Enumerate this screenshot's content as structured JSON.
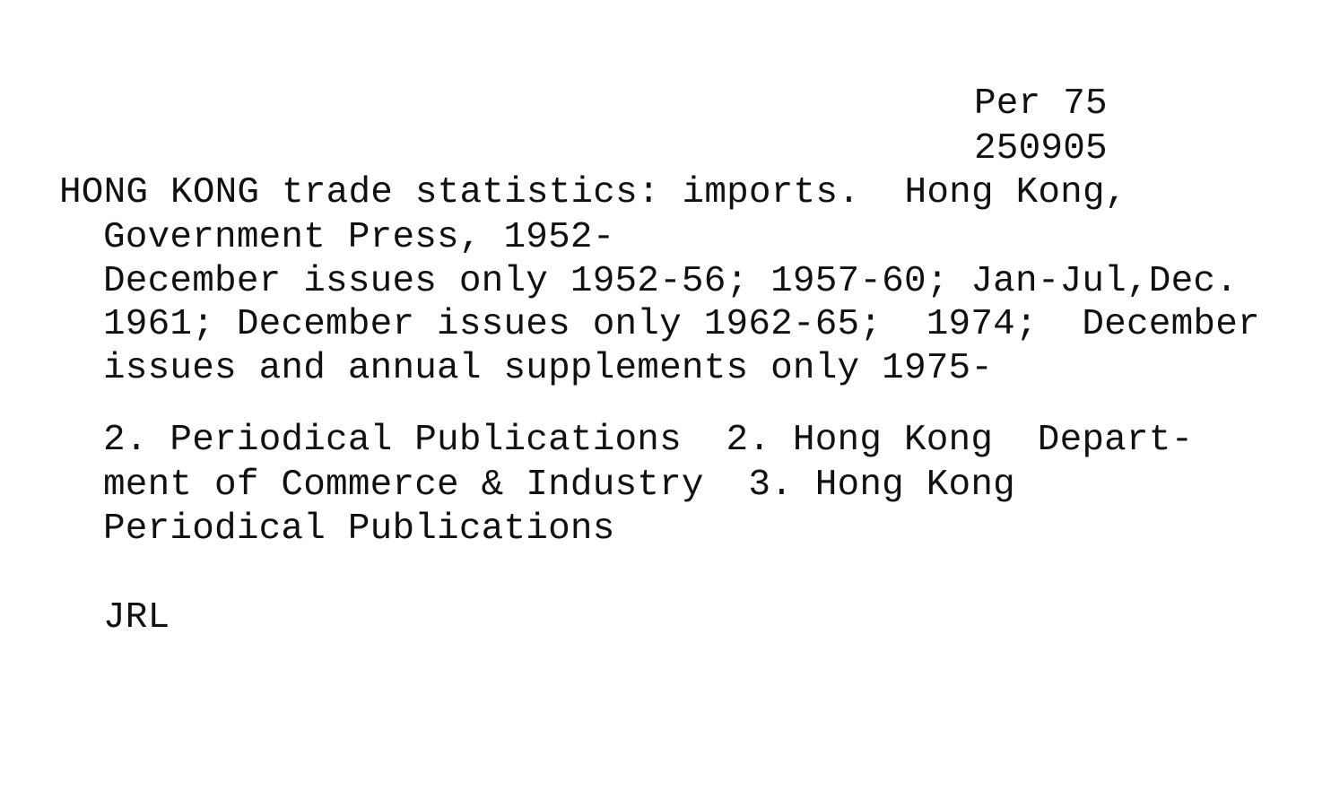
{
  "call_number": {
    "line1": "Per 75",
    "line2": "250905"
  },
  "entry": {
    "line1": "HONG KONG trade statistics: imports.  Hong Kong,",
    "line2": "Government Press, 1952-",
    "holdings1": "December issues only 1952-56; 1957-60; Jan-Jul,Dec.",
    "holdings2": "1961; December issues only 1962-65;  1974;  December",
    "holdings3": "issues and annual supplements only 1975-"
  },
  "subjects": {
    "line1": "2. Periodical Publications  2. Hong Kong  Depart-",
    "line2": "ment of Commerce & Industry  3. Hong Kong",
    "line3": "Periodical Publications"
  },
  "library": "JRL"
}
